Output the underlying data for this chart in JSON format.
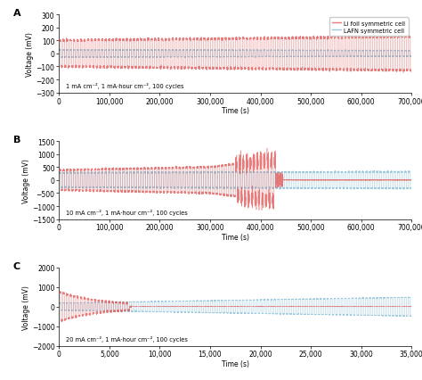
{
  "panel_A": {
    "label": "A",
    "annotation": "1 mA cm⁻², 1 mA·hour cm⁻², 100 cycles",
    "xlim": [
      0,
      700000
    ],
    "ylim": [
      -300,
      300
    ],
    "yticks": [
      -300,
      -200,
      -100,
      0,
      100,
      200,
      300
    ],
    "xticks": [
      0,
      100000,
      200000,
      300000,
      400000,
      500000,
      600000,
      700000
    ],
    "n_cycles": 100,
    "total_time": 700000,
    "red_amp_start": 100,
    "red_amp_end": 130,
    "blue_amp_start": 28,
    "blue_amp_end": 22
  },
  "panel_B": {
    "label": "B",
    "annotation": "10 mA cm⁻², 1 mA·hour cm⁻², 100 cycles",
    "xlim": [
      0,
      700000
    ],
    "ylim": [
      -1500,
      1500
    ],
    "yticks": [
      -1500,
      -1000,
      -500,
      0,
      500,
      1000,
      1500
    ],
    "xticks": [
      0,
      100000,
      200000,
      300000,
      400000,
      500000,
      600000,
      700000
    ],
    "n_cycles": 100,
    "total_time": 700000,
    "red_fail_time": 450000,
    "blue_amp_start": 280,
    "blue_amp_end": 320
  },
  "panel_C": {
    "label": "C",
    "annotation": "20 mA cm⁻², 1 mA·hour cm⁻², 100 cycles",
    "xlim": [
      0,
      35000
    ],
    "ylim": [
      -2000,
      2000
    ],
    "yticks": [
      -2000,
      -1000,
      0,
      1000,
      2000
    ],
    "xticks": [
      0,
      5000,
      10000,
      15000,
      20000,
      25000,
      30000,
      35000
    ],
    "n_cycles": 100,
    "total_time": 35000,
    "red_fail_time": 7000,
    "blue_amp_start": 180,
    "blue_amp_end": 480
  },
  "red_color": "#e05050",
  "blue_color": "#7bb8d4",
  "red_alpha": 0.75,
  "blue_alpha": 0.75,
  "ylabel": "Voltage (mV)",
  "xlabel": "Time (s)",
  "legend_red": "Li foil symmetric cell",
  "legend_blue": "LAFN symmetric cell"
}
